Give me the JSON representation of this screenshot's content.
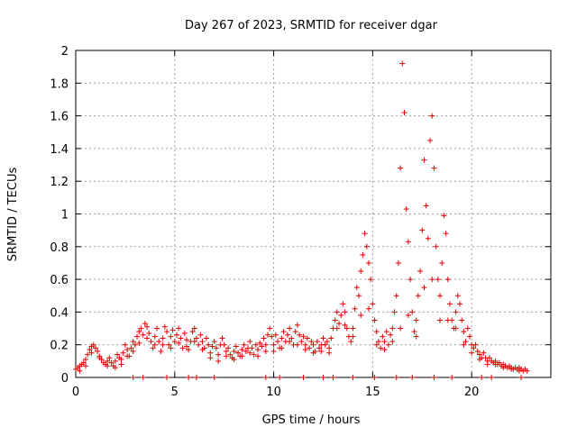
{
  "chart_data": {
    "type": "scatter",
    "title": "Day 267 of 2023, SRMTID for receiver dgar",
    "xlabel": "GPS time / hours",
    "ylabel": "SRMTID / TECUs",
    "xlim": [
      0,
      24
    ],
    "ylim": [
      0,
      2
    ],
    "xticks": [
      0,
      5,
      10,
      15,
      20
    ],
    "yticks": [
      0,
      0.2,
      0.4,
      0.6,
      0.8,
      1,
      1.2,
      1.4,
      1.6,
      1.8,
      2
    ],
    "xtick_labels": [
      "0",
      "5",
      "10",
      "15",
      "20"
    ],
    "ytick_labels": [
      "0",
      "0.2",
      "0.4",
      "0.6",
      "0.8",
      "1",
      "1.2",
      "1.4",
      "1.6",
      "1.8",
      "2"
    ],
    "grid": true,
    "marker": "+",
    "color": "#e00000",
    "series": [
      {
        "name": "dgar",
        "points": [
          [
            0.0,
            0.05
          ],
          [
            0.1,
            0.06
          ],
          [
            0.2,
            0.07
          ],
          [
            0.3,
            0.08
          ],
          [
            0.4,
            0.09
          ],
          [
            0.5,
            0.11
          ],
          [
            0.6,
            0.14
          ],
          [
            0.7,
            0.17
          ],
          [
            0.8,
            0.19
          ],
          [
            0.9,
            0.2
          ],
          [
            1.0,
            0.18
          ],
          [
            1.1,
            0.16
          ],
          [
            1.2,
            0.13
          ],
          [
            1.3,
            0.11
          ],
          [
            1.4,
            0.09
          ],
          [
            1.5,
            0.08
          ],
          [
            1.6,
            0.1
          ],
          [
            1.7,
            0.12
          ],
          [
            1.8,
            0.09
          ],
          [
            1.9,
            0.07
          ],
          [
            2.0,
            0.1
          ],
          [
            2.1,
            0.14
          ],
          [
            2.2,
            0.12
          ],
          [
            2.3,
            0.08
          ],
          [
            2.4,
            0.15
          ],
          [
            2.5,
            0.2
          ],
          [
            2.6,
            0.17
          ],
          [
            2.7,
            0.13
          ],
          [
            2.8,
            0.18
          ],
          [
            2.9,
            0.22
          ],
          [
            3.0,
            0.2
          ],
          [
            3.1,
            0.25
          ],
          [
            3.2,
            0.28
          ],
          [
            3.3,
            0.3
          ],
          [
            3.4,
            0.26
          ],
          [
            3.5,
            0.33
          ],
          [
            3.6,
            0.31
          ],
          [
            3.7,
            0.27
          ],
          [
            3.8,
            0.22
          ],
          [
            3.9,
            0.18
          ],
          [
            4.0,
            0.25
          ],
          [
            4.1,
            0.3
          ],
          [
            4.2,
            0.22
          ],
          [
            4.3,
            0.16
          ],
          [
            4.4,
            0.24
          ],
          [
            4.5,
            0.31
          ],
          [
            4.6,
            0.28
          ],
          [
            4.7,
            0.2
          ],
          [
            4.8,
            0.25
          ],
          [
            4.9,
            0.29
          ],
          [
            5.0,
            0.22
          ],
          [
            5.1,
            0.26
          ],
          [
            5.2,
            0.3
          ],
          [
            5.3,
            0.24
          ],
          [
            5.4,
            0.18
          ],
          [
            5.5,
            0.27
          ],
          [
            5.6,
            0.23
          ],
          [
            5.7,
            0.17
          ],
          [
            5.8,
            0.22
          ],
          [
            5.9,
            0.28
          ],
          [
            6.0,
            0.3
          ],
          [
            6.1,
            0.24
          ],
          [
            6.2,
            0.2
          ],
          [
            6.3,
            0.26
          ],
          [
            6.4,
            0.22
          ],
          [
            6.5,
            0.18
          ],
          [
            6.6,
            0.24
          ],
          [
            6.7,
            0.2
          ],
          [
            6.8,
            0.15
          ],
          [
            6.9,
            0.19
          ],
          [
            7.0,
            0.22
          ],
          [
            7.1,
            0.18
          ],
          [
            7.2,
            0.14
          ],
          [
            7.3,
            0.2
          ],
          [
            7.4,
            0.24
          ],
          [
            7.5,
            0.2
          ],
          [
            7.6,
            0.16
          ],
          [
            7.7,
            0.18
          ],
          [
            7.8,
            0.14
          ],
          [
            7.9,
            0.12
          ],
          [
            8.0,
            0.16
          ],
          [
            8.1,
            0.19
          ],
          [
            8.2,
            0.15
          ],
          [
            8.3,
            0.13
          ],
          [
            8.4,
            0.17
          ],
          [
            8.5,
            0.2
          ],
          [
            8.6,
            0.16
          ],
          [
            8.7,
            0.18
          ],
          [
            8.8,
            0.22
          ],
          [
            8.9,
            0.18
          ],
          [
            9.0,
            0.14
          ],
          [
            9.1,
            0.2
          ],
          [
            9.2,
            0.17
          ],
          [
            9.3,
            0.21
          ],
          [
            9.4,
            0.19
          ],
          [
            9.5,
            0.24
          ],
          [
            9.6,
            0.2
          ],
          [
            9.7,
            0.26
          ],
          [
            9.8,
            0.3
          ],
          [
            9.9,
            0.25
          ],
          [
            10.0,
            0.2
          ],
          [
            10.1,
            0.26
          ],
          [
            10.2,
            0.22
          ],
          [
            10.3,
            0.18
          ],
          [
            10.4,
            0.24
          ],
          [
            10.5,
            0.28
          ],
          [
            10.6,
            0.22
          ],
          [
            10.7,
            0.26
          ],
          [
            10.8,
            0.3
          ],
          [
            10.9,
            0.24
          ],
          [
            11.0,
            0.2
          ],
          [
            11.1,
            0.28
          ],
          [
            11.2,
            0.32
          ],
          [
            11.3,
            0.26
          ],
          [
            11.4,
            0.22
          ],
          [
            11.5,
            0.25
          ],
          [
            11.6,
            0.2
          ],
          [
            11.7,
            0.24
          ],
          [
            11.8,
            0.18
          ],
          [
            11.9,
            0.22
          ],
          [
            12.0,
            0.2
          ],
          [
            12.1,
            0.16
          ],
          [
            12.2,
            0.22
          ],
          [
            12.3,
            0.18
          ],
          [
            12.4,
            0.2
          ],
          [
            12.5,
            0.24
          ],
          [
            12.6,
            0.2
          ],
          [
            12.7,
            0.22
          ],
          [
            12.8,
            0.18
          ],
          [
            12.9,
            0.24
          ],
          [
            13.0,
            0.3
          ],
          [
            13.1,
            0.35
          ],
          [
            13.2,
            0.4
          ],
          [
            13.3,
            0.33
          ],
          [
            13.4,
            0.38
          ],
          [
            13.5,
            0.45
          ],
          [
            13.6,
            0.4
          ],
          [
            13.7,
            0.3
          ],
          [
            13.8,
            0.25
          ],
          [
            13.9,
            0.22
          ],
          [
            14.0,
            0.3
          ],
          [
            14.1,
            0.42
          ],
          [
            14.2,
            0.55
          ],
          [
            14.3,
            0.5
          ],
          [
            14.4,
            0.65
          ],
          [
            14.5,
            0.75
          ],
          [
            14.6,
            0.88
          ],
          [
            14.7,
            0.8
          ],
          [
            14.8,
            0.7
          ],
          [
            14.9,
            0.6
          ],
          [
            15.0,
            0.45
          ],
          [
            15.1,
            0.35
          ],
          [
            15.2,
            0.28
          ],
          [
            15.3,
            0.22
          ],
          [
            15.4,
            0.18
          ],
          [
            15.5,
            0.25
          ],
          [
            15.6,
            0.22
          ],
          [
            15.7,
            0.28
          ],
          [
            15.8,
            0.2
          ],
          [
            15.9,
            0.26
          ],
          [
            16.0,
            0.3
          ],
          [
            16.1,
            0.4
          ],
          [
            16.2,
            0.5
          ],
          [
            16.3,
            0.7
          ],
          [
            16.4,
            1.28
          ],
          [
            16.5,
            1.92
          ],
          [
            16.6,
            1.62
          ],
          [
            16.7,
            1.03
          ],
          [
            16.8,
            0.83
          ],
          [
            16.9,
            0.6
          ],
          [
            17.0,
            0.4
          ],
          [
            17.1,
            0.28
          ],
          [
            17.2,
            0.35
          ],
          [
            17.3,
            0.5
          ],
          [
            17.4,
            0.65
          ],
          [
            17.5,
            0.9
          ],
          [
            17.6,
            1.33
          ],
          [
            17.7,
            1.05
          ],
          [
            17.8,
            0.85
          ],
          [
            17.9,
            1.45
          ],
          [
            18.0,
            1.6
          ],
          [
            18.1,
            1.28
          ],
          [
            18.2,
            0.8
          ],
          [
            18.3,
            0.6
          ],
          [
            18.4,
            0.5
          ],
          [
            18.5,
            0.7
          ],
          [
            18.6,
            0.99
          ],
          [
            18.7,
            0.88
          ],
          [
            18.8,
            0.6
          ],
          [
            18.9,
            0.45
          ],
          [
            19.0,
            0.35
          ],
          [
            19.1,
            0.3
          ],
          [
            19.2,
            0.4
          ],
          [
            19.3,
            0.5
          ],
          [
            19.4,
            0.45
          ],
          [
            19.5,
            0.35
          ],
          [
            19.6,
            0.28
          ],
          [
            19.7,
            0.22
          ],
          [
            19.8,
            0.3
          ],
          [
            19.9,
            0.25
          ],
          [
            20.0,
            0.2
          ],
          [
            20.1,
            0.18
          ],
          [
            20.2,
            0.2
          ],
          [
            20.3,
            0.16
          ],
          [
            20.4,
            0.14
          ],
          [
            20.5,
            0.12
          ],
          [
            20.6,
            0.15
          ],
          [
            20.7,
            0.12
          ],
          [
            20.8,
            0.1
          ],
          [
            20.9,
            0.12
          ],
          [
            21.0,
            0.1
          ],
          [
            21.1,
            0.09
          ],
          [
            21.2,
            0.1
          ],
          [
            21.3,
            0.08
          ],
          [
            21.4,
            0.09
          ],
          [
            21.5,
            0.07
          ],
          [
            21.6,
            0.08
          ],
          [
            21.7,
            0.07
          ],
          [
            21.8,
            0.06
          ],
          [
            21.9,
            0.07
          ],
          [
            22.0,
            0.06
          ],
          [
            22.1,
            0.05
          ],
          [
            22.2,
            0.06
          ],
          [
            22.3,
            0.05
          ],
          [
            22.4,
            0.06
          ],
          [
            22.5,
            0.05
          ],
          [
            22.6,
            0.04
          ],
          [
            22.7,
            0.05
          ],
          [
            22.8,
            0.04
          ],
          [
            0.2,
            0.04
          ],
          [
            0.5,
            0.07
          ],
          [
            0.8,
            0.15
          ],
          [
            1.2,
            0.12
          ],
          [
            1.6,
            0.07
          ],
          [
            2.0,
            0.06
          ],
          [
            2.3,
            0.11
          ],
          [
            2.6,
            0.13
          ],
          [
            2.9,
            0.16
          ],
          [
            3.2,
            0.21
          ],
          [
            3.6,
            0.24
          ],
          [
            4.0,
            0.2
          ],
          [
            4.4,
            0.2
          ],
          [
            4.8,
            0.18
          ],
          [
            5.2,
            0.21
          ],
          [
            5.6,
            0.19
          ],
          [
            6.0,
            0.22
          ],
          [
            6.4,
            0.17
          ],
          [
            6.8,
            0.12
          ],
          [
            7.2,
            0.1
          ],
          [
            7.6,
            0.13
          ],
          [
            8.0,
            0.11
          ],
          [
            8.4,
            0.13
          ],
          [
            8.8,
            0.15
          ],
          [
            9.2,
            0.13
          ],
          [
            9.6,
            0.16
          ],
          [
            10.0,
            0.16
          ],
          [
            10.4,
            0.18
          ],
          [
            10.8,
            0.22
          ],
          [
            11.2,
            0.2
          ],
          [
            11.6,
            0.17
          ],
          [
            12.0,
            0.15
          ],
          [
            12.4,
            0.16
          ],
          [
            12.8,
            0.15
          ],
          [
            13.2,
            0.3
          ],
          [
            13.6,
            0.32
          ],
          [
            14.0,
            0.25
          ],
          [
            14.4,
            0.38
          ],
          [
            14.8,
            0.42
          ],
          [
            15.2,
            0.2
          ],
          [
            15.6,
            0.17
          ],
          [
            16.0,
            0.22
          ],
          [
            16.4,
            0.3
          ],
          [
            16.8,
            0.38
          ],
          [
            17.2,
            0.25
          ],
          [
            17.6,
            0.55
          ],
          [
            18.0,
            0.6
          ],
          [
            18.4,
            0.35
          ],
          [
            18.8,
            0.35
          ],
          [
            19.2,
            0.3
          ],
          [
            19.6,
            0.2
          ],
          [
            20.0,
            0.15
          ],
          [
            20.4,
            0.11
          ],
          [
            20.8,
            0.08
          ],
          [
            21.2,
            0.08
          ],
          [
            21.6,
            0.06
          ],
          [
            22.0,
            0.05
          ],
          [
            22.4,
            0.04
          ],
          [
            2.9,
            0.0
          ],
          [
            3.4,
            0.0
          ],
          [
            4.6,
            0.0
          ],
          [
            5.7,
            0.0
          ],
          [
            6.1,
            0.0
          ],
          [
            7.0,
            0.0
          ],
          [
            9.6,
            0.0
          ],
          [
            10.3,
            0.0
          ],
          [
            11.5,
            0.0
          ],
          [
            12.5,
            0.0
          ],
          [
            13.0,
            0.0
          ],
          [
            14.0,
            0.0
          ],
          [
            15.1,
            0.0
          ],
          [
            16.2,
            0.0
          ],
          [
            17.0,
            0.0
          ],
          [
            18.1,
            0.0
          ],
          [
            19.0,
            0.0
          ],
          [
            20.5,
            0.0
          ],
          [
            21.0,
            0.0
          ],
          [
            22.5,
            0.0
          ]
        ]
      }
    ]
  }
}
